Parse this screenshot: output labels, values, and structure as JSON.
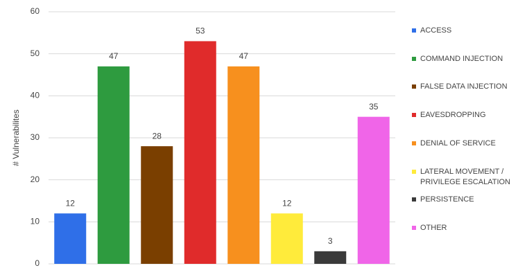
{
  "chart_data": {
    "type": "bar",
    "y_label": "# Vulnerabilites",
    "categories": [
      "ACCESS",
      "COMMAND INJECTION",
      "FALSE DATA INJECTION",
      "EAVESDROPPING",
      "DENIAL OF SERVICE",
      "LATERAL MOVEMENT / PRIVILEGE ESCALATION",
      "PERSISTENCE",
      "OTHER"
    ],
    "values": [
      12,
      47,
      28,
      53,
      47,
      12,
      3,
      35
    ],
    "colors": [
      "#2f6fe8",
      "#2e9b3f",
      "#7a3f00",
      "#e02b2b",
      "#f7901e",
      "#ffeb3b",
      "#3a3a3a",
      "#f065e8"
    ],
    "ylim": [
      0,
      60
    ],
    "yticks": [
      0,
      10,
      20,
      30,
      40,
      50,
      60
    ],
    "grid": true,
    "legend": "right"
  }
}
